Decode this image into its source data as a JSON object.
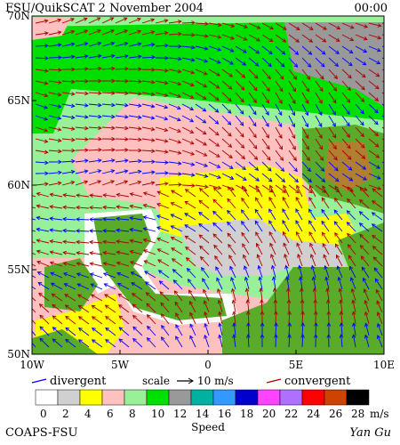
{
  "header": {
    "title": "FSU/QuikSCAT  2 November 2004",
    "time": "00:00"
  },
  "lat_labels": [
    "70N",
    "65N",
    "60N",
    "55N",
    "50N"
  ],
  "lon_labels": [
    "10W",
    "5W",
    "0",
    "5E",
    "10E"
  ],
  "legend": {
    "divergent": "divergent",
    "scale": "scale",
    "scale_value": "10 m/s",
    "convergent": "convergent",
    "divergent_color": "#0000ff",
    "convergent_color": "#aa0000"
  },
  "colorbar": {
    "labels": [
      0,
      2,
      4,
      6,
      8,
      10,
      12,
      14,
      16,
      18,
      20,
      22,
      24,
      26,
      28
    ],
    "unit": "m/s",
    "title": "Speed",
    "colors": [
      "#ffffff",
      "#d0d0d0",
      "#ffff00",
      "#ffc0c0",
      "#98f098",
      "#00e000",
      "#999999",
      "#00b0a0",
      "#3399ff",
      "#0000cc",
      "#ff44ff",
      "#b070ff",
      "#ff0000",
      "#cc4400",
      "#000000"
    ]
  },
  "footer": {
    "left": "COAPS-FSU",
    "right": "Yan Gu"
  }
}
